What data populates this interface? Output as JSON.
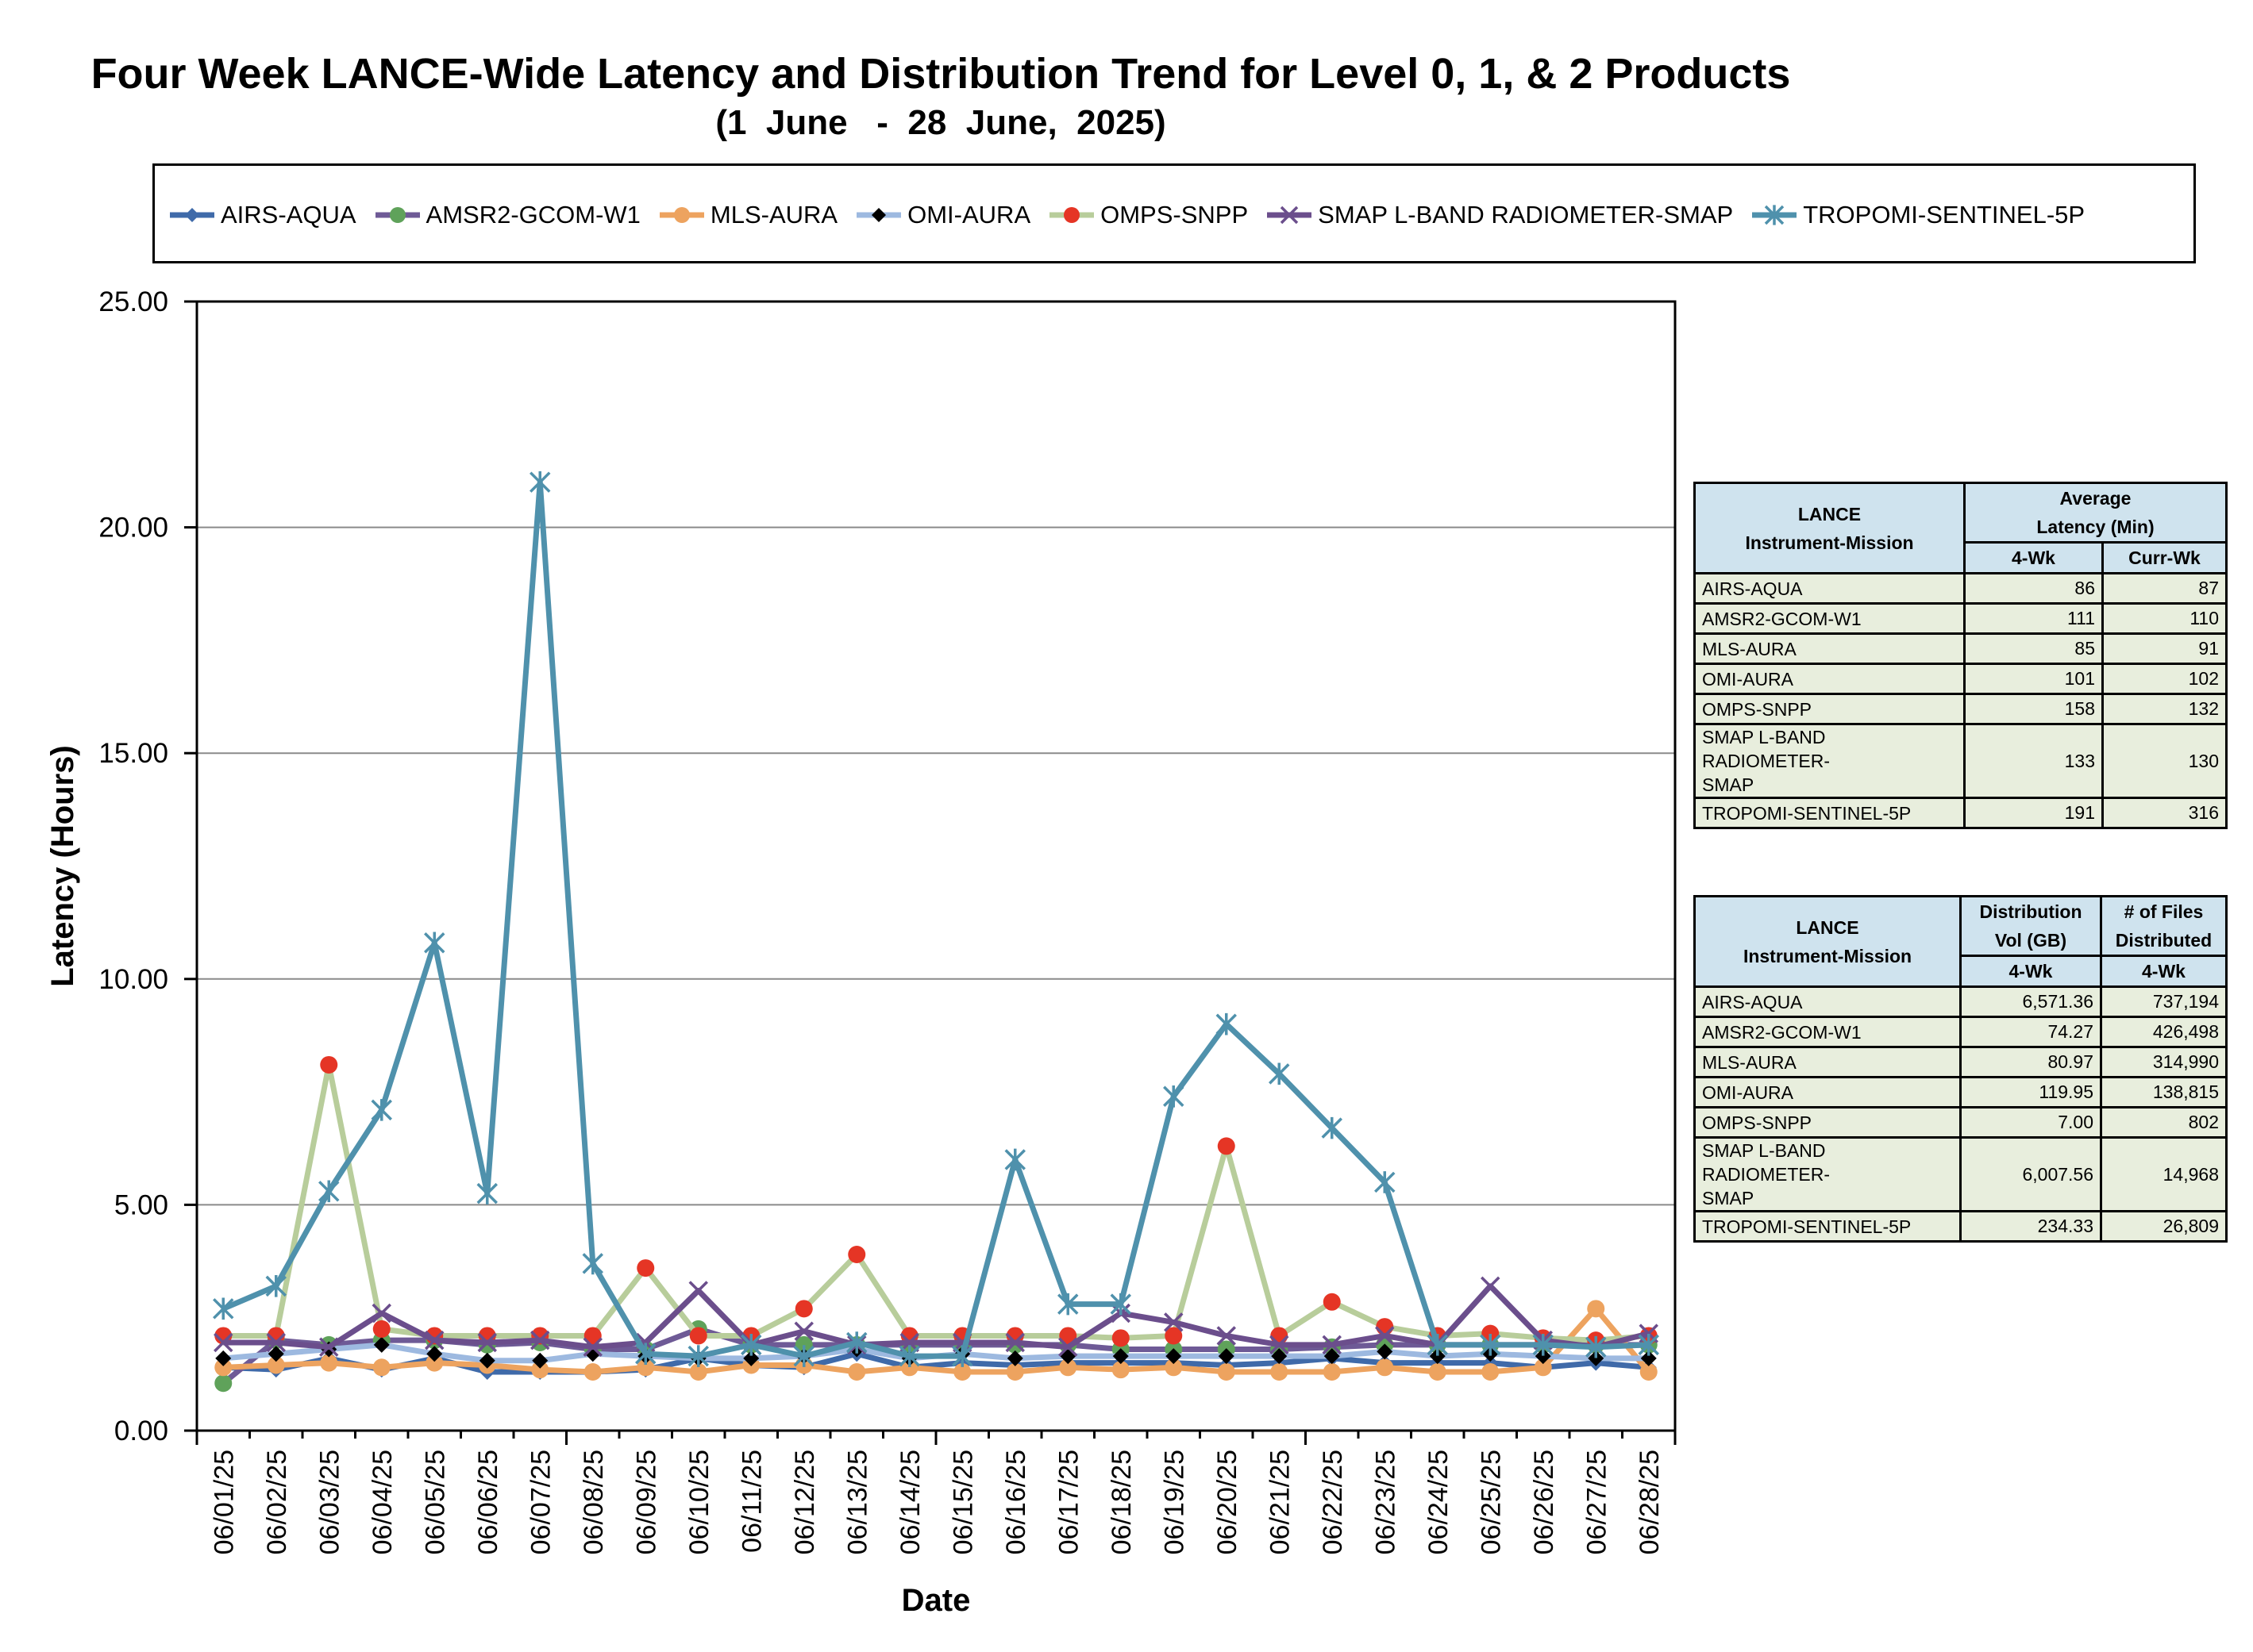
{
  "chart_data": {
    "type": "line",
    "title": "Four Week LANCE-Wide Latency and Distribution Trend for Level 0, 1, & 2 Products",
    "subtitle": "(1  June   -  28  June,  2025)",
    "xlabel": "Date",
    "ylabel": "Latency (Hours)",
    "ylim": [
      0,
      25
    ],
    "yticks": [
      "0.00",
      "5.00",
      "10.00",
      "15.00",
      "20.00",
      "25.00"
    ],
    "grid": true,
    "legend_position": "top",
    "categories": [
      "06/01/25",
      "06/02/25",
      "06/03/25",
      "06/04/25",
      "06/05/25",
      "06/06/25",
      "06/07/25",
      "06/08/25",
      "06/09/25",
      "06/10/25",
      "06/11/25",
      "06/12/25",
      "06/13/25",
      "06/14/25",
      "06/15/25",
      "06/16/25",
      "06/17/25",
      "06/18/25",
      "06/19/25",
      "06/20/25",
      "06/21/25",
      "06/22/25",
      "06/23/25",
      "06/24/25",
      "06/25/25",
      "06/26/25",
      "06/27/25",
      "06/28/25"
    ],
    "series": [
      {
        "name": "AIRS-AQUA",
        "color": "#3f6aa9",
        "marker": "diamond",
        "markerColor": "#3f6aa9",
        "values": [
          1.4,
          1.35,
          1.6,
          1.35,
          1.6,
          1.3,
          1.3,
          1.3,
          1.35,
          1.6,
          1.45,
          1.4,
          1.7,
          1.4,
          1.5,
          1.45,
          1.5,
          1.5,
          1.5,
          1.45,
          1.5,
          1.6,
          1.5,
          1.5,
          1.5,
          1.4,
          1.5,
          1.4
        ]
      },
      {
        "name": "AMSR2-GCOM-W1",
        "color": "#6e5a96",
        "marker": "circle",
        "markerColor": "#5fa25a",
        "values": [
          1.05,
          2.0,
          1.9,
          2.0,
          2.0,
          1.9,
          1.95,
          1.8,
          1.8,
          2.25,
          1.9,
          1.9,
          1.9,
          1.9,
          1.9,
          1.9,
          1.9,
          1.8,
          1.8,
          1.8,
          1.8,
          1.85,
          1.9,
          1.9,
          1.9,
          1.9,
          1.9,
          1.9
        ]
      },
      {
        "name": "MLS-AURA",
        "color": "#eda35f",
        "marker": "circle",
        "markerColor": "#eda35f",
        "values": [
          1.4,
          1.45,
          1.5,
          1.4,
          1.5,
          1.45,
          1.35,
          1.3,
          1.4,
          1.3,
          1.45,
          1.45,
          1.3,
          1.4,
          1.3,
          1.3,
          1.4,
          1.35,
          1.4,
          1.3,
          1.3,
          1.3,
          1.4,
          1.3,
          1.3,
          1.4,
          2.7,
          1.3
        ]
      },
      {
        "name": "OMI-AURA",
        "color": "#9db9e0",
        "marker": "diamond",
        "markerColor": "#000000",
        "values": [
          1.6,
          1.7,
          1.8,
          1.9,
          1.7,
          1.55,
          1.55,
          1.7,
          1.65,
          1.6,
          1.6,
          1.65,
          1.8,
          1.6,
          1.7,
          1.6,
          1.65,
          1.65,
          1.65,
          1.65,
          1.65,
          1.65,
          1.75,
          1.65,
          1.7,
          1.65,
          1.6,
          1.6
        ]
      },
      {
        "name": "OMPS-SNPP",
        "color": "#b8cd9b",
        "marker": "circle",
        "markerColor": "#e53525",
        "values": [
          2.1,
          2.1,
          8.1,
          2.25,
          2.1,
          2.1,
          2.1,
          2.1,
          3.6,
          2.1,
          2.1,
          2.7,
          3.9,
          2.1,
          2.1,
          2.1,
          2.1,
          2.05,
          2.1,
          6.3,
          2.1,
          2.85,
          2.3,
          2.1,
          2.15,
          2.05,
          2.0,
          2.1
        ]
      },
      {
        "name": "SMAP L-BAND RADIOMETER-SMAP",
        "color": "#6b4e8c",
        "marker": "x",
        "markerColor": "#6b4e8c",
        "values": [
          1.95,
          1.95,
          1.85,
          2.6,
          2.0,
          1.95,
          2.0,
          1.85,
          1.95,
          3.1,
          1.9,
          2.2,
          1.9,
          1.95,
          1.95,
          1.95,
          1.85,
          2.6,
          2.4,
          2.1,
          1.9,
          1.9,
          2.1,
          1.9,
          3.2,
          2.0,
          1.85,
          2.15
        ]
      },
      {
        "name": "TROPOMI-SENTINEL-5P",
        "color": "#4f91ac",
        "marker": "star",
        "markerColor": "#4f91ac",
        "values": [
          2.7,
          3.2,
          5.3,
          7.1,
          10.8,
          5.25,
          21.0,
          3.7,
          1.7,
          1.65,
          1.9,
          1.65,
          1.95,
          1.65,
          1.65,
          6.0,
          2.8,
          2.8,
          7.4,
          9.0,
          7.9,
          6.7,
          5.5,
          1.9,
          1.9,
          1.9,
          1.85,
          1.9
        ]
      }
    ]
  },
  "latency_table": {
    "col1_header": "LANCE\nInstrument-Mission",
    "col2_header": "Average\nLatency (Min)",
    "sub_col2": "4-Wk",
    "sub_col3": "Curr-Wk",
    "rows": [
      {
        "name": "AIRS-AQUA",
        "four_wk": "86",
        "curr_wk": "87"
      },
      {
        "name": "AMSR2-GCOM-W1",
        "four_wk": "111",
        "curr_wk": "110"
      },
      {
        "name": "MLS-AURA",
        "four_wk": "85",
        "curr_wk": "91"
      },
      {
        "name": "OMI-AURA",
        "four_wk": "101",
        "curr_wk": "102"
      },
      {
        "name": "OMPS-SNPP",
        "four_wk": "158",
        "curr_wk": "132"
      },
      {
        "name": "SMAP L-BAND RADIOMETER-\nSMAP",
        "four_wk": "133",
        "curr_wk": "130"
      },
      {
        "name": "TROPOMI-SENTINEL-5P",
        "four_wk": "191",
        "curr_wk": "316"
      }
    ]
  },
  "distribution_table": {
    "col1_header": "LANCE\nInstrument-Mission",
    "col2_header": "Distribution\nVol (GB)",
    "col3_header": "# of Files\nDistributed",
    "sub_col2": "4-Wk",
    "sub_col3": "4-Wk",
    "rows": [
      {
        "name": "AIRS-AQUA",
        "vol": "6,571.36",
        "files": "737,194"
      },
      {
        "name": "AMSR2-GCOM-W1",
        "vol": "74.27",
        "files": "426,498"
      },
      {
        "name": "MLS-AURA",
        "vol": "80.97",
        "files": "314,990"
      },
      {
        "name": "OMI-AURA",
        "vol": "119.95",
        "files": "138,815"
      },
      {
        "name": "OMPS-SNPP",
        "vol": "7.00",
        "files": "802"
      },
      {
        "name": "SMAP L-BAND RADIOMETER-\nSMAP",
        "vol": "6,007.56",
        "files": "14,968"
      },
      {
        "name": "TROPOMI-SENTINEL-5P",
        "vol": "234.33",
        "files": "26,809"
      }
    ]
  }
}
